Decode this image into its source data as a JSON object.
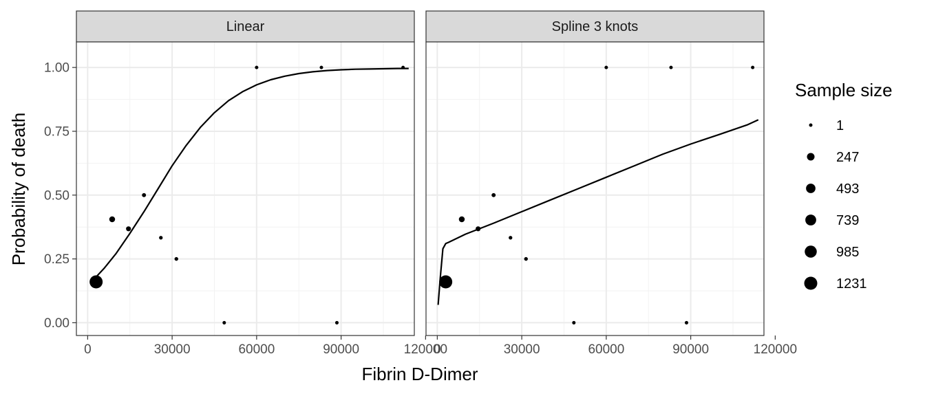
{
  "chart_data": {
    "type": "scatter",
    "xlabel": "Fibrin D-Dimer",
    "ylabel": "Probability of death",
    "xlim": [
      -4000,
      116000
    ],
    "ylim": [
      -0.05,
      1.1
    ],
    "x_ticks": [
      0,
      30000,
      60000,
      90000,
      120000
    ],
    "x_tick_labels": [
      "0",
      "30000",
      "60000",
      "90000",
      "120000"
    ],
    "y_ticks": [
      0,
      0.25,
      0.5,
      0.75,
      1.0
    ],
    "y_tick_labels": [
      "0.00",
      "0.25",
      "0.50",
      "0.75",
      "1.00"
    ],
    "grid": true,
    "legend": {
      "title": "Sample size",
      "position": "right",
      "sizes": [
        1,
        247,
        493,
        739,
        985,
        1231
      ],
      "labels": [
        "1",
        "247",
        "493",
        "739",
        "985",
        "1231"
      ]
    },
    "points": [
      {
        "x": 3000,
        "y": 0.16,
        "n": 1231
      },
      {
        "x": 8700,
        "y": 0.405,
        "n": 90
      },
      {
        "x": 14500,
        "y": 0.368,
        "n": 40
      },
      {
        "x": 20000,
        "y": 0.5,
        "n": 10
      },
      {
        "x": 26000,
        "y": 0.333,
        "n": 3
      },
      {
        "x": 31500,
        "y": 0.25,
        "n": 4
      },
      {
        "x": 48500,
        "y": 0.0,
        "n": 1
      },
      {
        "x": 60000,
        "y": 1.0,
        "n": 1
      },
      {
        "x": 83000,
        "y": 1.0,
        "n": 1
      },
      {
        "x": 88500,
        "y": 0.0,
        "n": 1
      },
      {
        "x": 112000,
        "y": 1.0,
        "n": 1
      }
    ],
    "panels": [
      {
        "label": "Linear",
        "line": {
          "x": [
            2000,
            6000,
            10000,
            15000,
            20000,
            25000,
            30000,
            35000,
            40000,
            45000,
            50000,
            55000,
            60000,
            65000,
            70000,
            75000,
            80000,
            85000,
            90000,
            95000,
            100000,
            105000,
            110000,
            114000
          ],
          "y": [
            0.168,
            0.215,
            0.27,
            0.35,
            0.435,
            0.525,
            0.615,
            0.695,
            0.765,
            0.823,
            0.87,
            0.905,
            0.932,
            0.952,
            0.966,
            0.976,
            0.983,
            0.988,
            0.991,
            0.993,
            0.994,
            0.995,
            0.996,
            0.996
          ]
        }
      },
      {
        "label": "Spline 3 knots",
        "line": {
          "x": [
            300,
            1000,
            2000,
            3000,
            4000,
            10000,
            20000,
            30000,
            40000,
            50000,
            60000,
            70000,
            80000,
            90000,
            100000,
            110000,
            114000
          ],
          "y": [
            0.07,
            0.17,
            0.29,
            0.31,
            0.315,
            0.347,
            0.39,
            0.435,
            0.48,
            0.525,
            0.57,
            0.615,
            0.66,
            0.7,
            0.737,
            0.775,
            0.795
          ]
        }
      }
    ]
  }
}
